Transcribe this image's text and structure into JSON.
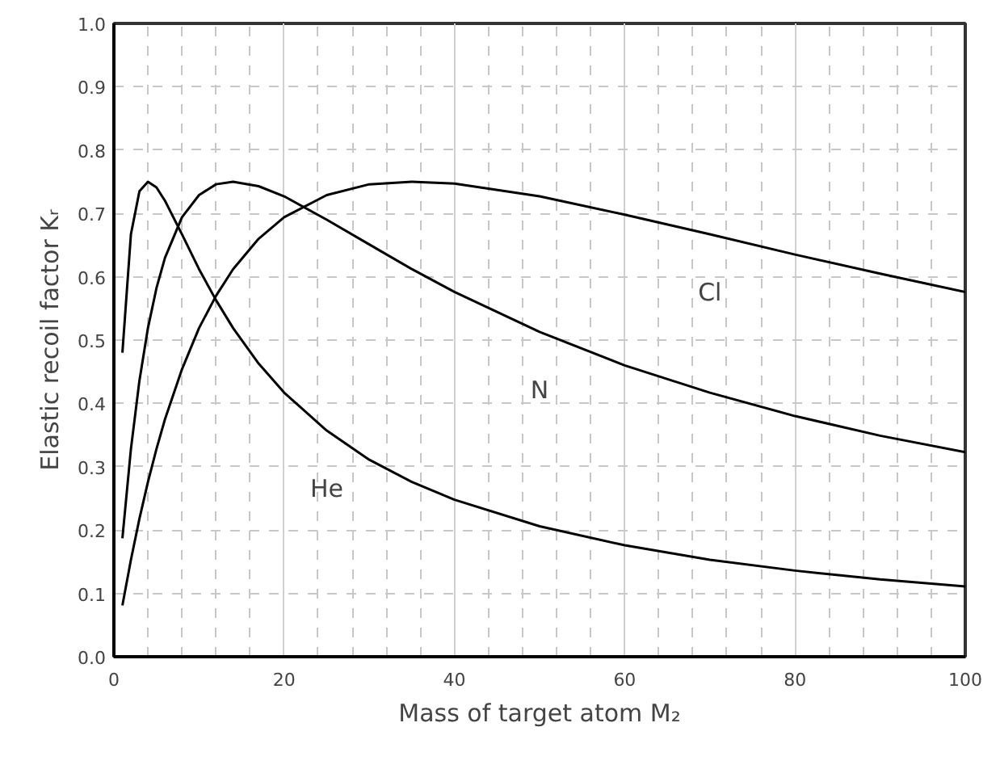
{
  "chart_data": {
    "type": "line",
    "xlabel": "Mass of target atom M₂",
    "ylabel": "Elastic recoil factor Kᵣ",
    "x": [
      1,
      2,
      3,
      4,
      5,
      6,
      8,
      10,
      12,
      14,
      17,
      20,
      25,
      30,
      35,
      40,
      50,
      60,
      70,
      80,
      90,
      100
    ],
    "series": [
      {
        "name": "He",
        "color": "#000000",
        "values": [
          0.48,
          0.667,
          0.735,
          0.75,
          0.741,
          0.72,
          0.667,
          0.612,
          0.563,
          0.519,
          0.463,
          0.417,
          0.357,
          0.311,
          0.276,
          0.248,
          0.206,
          0.176,
          0.153,
          0.136,
          0.122,
          0.111
        ]
      },
      {
        "name": "N",
        "color": "#000000",
        "values": [
          0.187,
          0.328,
          0.436,
          0.519,
          0.582,
          0.63,
          0.694,
          0.729,
          0.746,
          0.75,
          0.743,
          0.727,
          0.69,
          0.651,
          0.612,
          0.576,
          0.513,
          0.46,
          0.417,
          0.38,
          0.349,
          0.323
        ]
      },
      {
        "name": "Cl",
        "color": "#000000",
        "values": [
          0.081,
          0.153,
          0.218,
          0.276,
          0.328,
          0.375,
          0.454,
          0.519,
          0.57,
          0.612,
          0.66,
          0.694,
          0.729,
          0.746,
          0.75,
          0.747,
          0.727,
          0.698,
          0.667,
          0.635,
          0.605,
          0.576
        ]
      }
    ],
    "xlim": [
      0,
      100
    ],
    "xticks": [
      0,
      20,
      40,
      60,
      80,
      100
    ],
    "ylim": [
      0,
      1
    ],
    "yticks": [
      {
        "value": 0,
        "label": "0.0"
      },
      {
        "value": 0.1,
        "label": "0.1"
      },
      {
        "value": 0.2,
        "label": "0.2"
      },
      {
        "value": 0.3,
        "label": "0.3"
      },
      {
        "value": 0.4,
        "label": "0.4"
      },
      {
        "value": 0.5,
        "label": "0.5"
      },
      {
        "value": 0.6,
        "label": "0.6"
      },
      {
        "value": 0.7,
        "label": "0.7"
      },
      {
        "value": 0.8,
        "label": "0.8"
      },
      {
        "value": 0.9,
        "label": "0.9"
      },
      {
        "value": 1,
        "label": "1.0"
      }
    ],
    "grid": true,
    "marker": "none",
    "line_style": "solid",
    "legend": false
  }
}
